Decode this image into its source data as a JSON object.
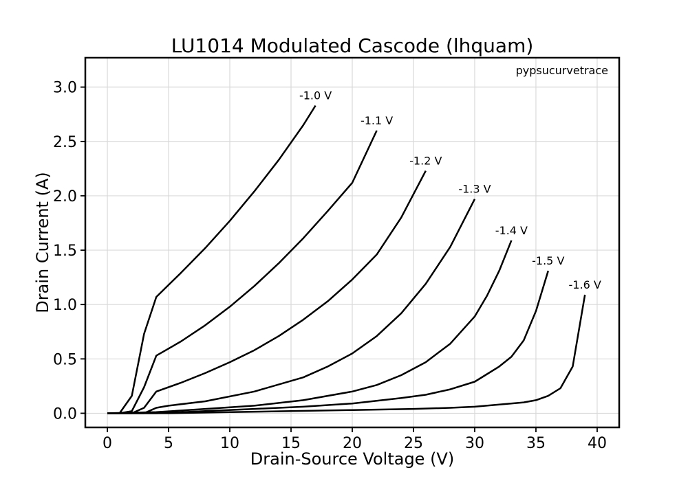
{
  "chart_data": {
    "type": "line",
    "title": "LU1014 Modulated Cascode (lhquam)",
    "watermark": "pypsucurvetrace",
    "xlabel": "Drain-Source Voltage (V)",
    "ylabel": "Drain Current (A)",
    "xlim": [
      -1.8,
      41.8
    ],
    "ylim": [
      -0.13,
      3.27
    ],
    "xticks": [
      0,
      5,
      10,
      15,
      20,
      25,
      30,
      35,
      40
    ],
    "yticks": [
      0.0,
      0.5,
      1.0,
      1.5,
      2.0,
      2.5,
      3.0
    ],
    "xtick_labels": [
      "0",
      "5",
      "10",
      "15",
      "20",
      "25",
      "30",
      "35",
      "40"
    ],
    "ytick_labels": [
      "0.0",
      "0.5",
      "1.0",
      "1.5",
      "2.0",
      "2.5",
      "3.0"
    ],
    "grid": true,
    "series": [
      {
        "name": "-1.0 V",
        "x": [
          0,
          1,
          2,
          3,
          4,
          6,
          8,
          10,
          12,
          14,
          16,
          17
        ],
        "y": [
          0,
          0,
          0.16,
          0.73,
          1.07,
          1.29,
          1.52,
          1.77,
          2.04,
          2.33,
          2.65,
          2.83
        ]
      },
      {
        "name": "-1.1 V",
        "x": [
          0,
          1,
          2,
          3,
          4,
          6,
          8,
          10,
          12,
          14,
          16,
          18,
          20,
          22
        ],
        "y": [
          0,
          0,
          0.02,
          0.24,
          0.53,
          0.66,
          0.81,
          0.98,
          1.17,
          1.38,
          1.61,
          1.86,
          2.12,
          2.6
        ]
      },
      {
        "name": "-1.2 V",
        "x": [
          0,
          2,
          3,
          4,
          6,
          8,
          10,
          12,
          14,
          16,
          18,
          20,
          22,
          24,
          26
        ],
        "y": [
          0,
          0,
          0.05,
          0.2,
          0.28,
          0.37,
          0.47,
          0.58,
          0.71,
          0.86,
          1.03,
          1.23,
          1.46,
          1.8,
          2.23
        ]
      },
      {
        "name": "-1.3 V",
        "x": [
          0,
          3,
          4,
          5,
          8,
          12,
          16,
          18,
          20,
          22,
          24,
          26,
          28,
          30
        ],
        "y": [
          0,
          0,
          0.05,
          0.07,
          0.11,
          0.2,
          0.33,
          0.43,
          0.55,
          0.71,
          0.92,
          1.19,
          1.53,
          1.97
        ]
      },
      {
        "name": "-1.4 V",
        "x": [
          0,
          4,
          8,
          12,
          16,
          20,
          22,
          24,
          26,
          28,
          30,
          31,
          32,
          33
        ],
        "y": [
          0,
          0.01,
          0.04,
          0.07,
          0.12,
          0.2,
          0.26,
          0.35,
          0.47,
          0.64,
          0.89,
          1.08,
          1.31,
          1.59
        ]
      },
      {
        "name": "-1.5 V",
        "x": [
          0,
          4,
          8,
          12,
          16,
          20,
          24,
          26,
          28,
          30,
          31,
          32,
          33,
          34,
          35,
          36
        ],
        "y": [
          0,
          0,
          0.02,
          0.04,
          0.06,
          0.09,
          0.14,
          0.17,
          0.22,
          0.29,
          0.36,
          0.43,
          0.52,
          0.67,
          0.94,
          1.31
        ]
      },
      {
        "name": "-1.6 V",
        "x": [
          0,
          5,
          10,
          15,
          20,
          25,
          28,
          30,
          32,
          34,
          35,
          36,
          37,
          38,
          39
        ],
        "y": [
          0,
          0,
          0.01,
          0.02,
          0.03,
          0.04,
          0.05,
          0.06,
          0.08,
          0.1,
          0.12,
          0.16,
          0.23,
          0.43,
          1.09
        ]
      }
    ]
  }
}
